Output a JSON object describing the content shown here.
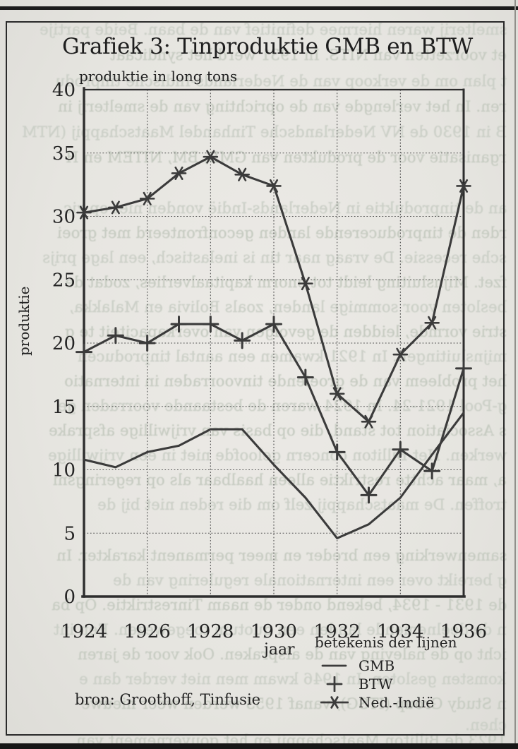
{
  "page": {
    "title": "Grafiek 3: Tinproduktie GMB en BTW",
    "subtitle": "produktie in long tons",
    "y_axis_title": "produktie",
    "x_axis_title": "jaar",
    "legend_title": "betekenis der lijnen",
    "source": "bron: Groothoff, Tinfusie"
  },
  "chart_data": {
    "type": "line",
    "title": "Grafiek 3: Tinproduktie GMB en BTW",
    "subtitle": "produktie in long tons",
    "xlabel": "jaar",
    "ylabel": "produktie",
    "x": [
      1924,
      1925,
      1926,
      1927,
      1928,
      1929,
      1930,
      1931,
      1932,
      1933,
      1934,
      1935,
      1936
    ],
    "series": [
      {
        "name": "GMB",
        "marker": "none",
        "values": [
          10.8,
          10.2,
          11.4,
          11.9,
          13.2,
          13.2,
          10.4,
          7.8,
          4.6,
          5.7,
          7.8,
          11.2,
          14.5
        ]
      },
      {
        "name": "BTW",
        "marker": "plus",
        "values": [
          19.3,
          20.6,
          20.0,
          21.5,
          21.5,
          20.2,
          21.5,
          17.3,
          11.4,
          8.0,
          11.6,
          9.9,
          18.0
        ]
      },
      {
        "name": "Ned.-Indië",
        "marker": "star",
        "values": [
          30.3,
          30.7,
          31.4,
          33.4,
          34.7,
          33.3,
          32.4,
          24.7,
          16.0,
          13.8,
          19.1,
          21.6,
          32.4
        ]
      }
    ],
    "ylim": [
      0,
      40
    ],
    "y_ticks": [
      0,
      5,
      10,
      15,
      20,
      25,
      30,
      35,
      40
    ],
    "x_ticks": [
      1924,
      1926,
      1928,
      1930,
      1932,
      1934,
      1936
    ],
    "grid": true,
    "legend_title": "betekenis der lijnen",
    "legend_position": "below-right",
    "source": "bron: Groothoff, Tinfusie"
  },
  "colors": {
    "ink": "#3b3b3b",
    "axis": "#2d2d2d",
    "grid": "#3f3f3f",
    "label": "#242424",
    "paper": "#e7e6e2",
    "bleed": "#c6cbc1"
  },
  "bleedthrough": {
    "lines": [
      {
        "top": 30,
        "text": "smelterij waren hiermee definitief van de baan. Beide partije"
      },
      {
        "top": 66,
        "text": "et voorzetten van NITS. In 1931 werd het syndicaat"
      },
      {
        "top": 103,
        "text": "t plan om de verkoop van de Nederlands-Indische tinprodu"
      },
      {
        "top": 139,
        "text": "ren. In het verlengde van de oprichting van de smelterij in"
      },
      {
        "top": 175,
        "text": "B in 1930 de NV Nederlandsche Tinhandel Maatschappij (NTM"
      },
      {
        "top": 211,
        "text": "rganisatie voor de produkten van GMB, BM, NITEM en H"
      },
      {
        "top": 283,
        "text": "an de tinproduktie in Nederlands-Indië vonden niet op zic"
      },
      {
        "top": 318,
        "text": "rden de tinproducerende landen geconfronteerd met groei"
      },
      {
        "top": 353,
        "text": "sche recessie. De vraag naar tin is inelastisch, een lage prijs"
      },
      {
        "top": 388,
        "text": "fzet. Mijnsluiting leidt tot enorm kapitaalverlies, zodat de"
      },
      {
        "top": 423,
        "text": "besloten voor sommige landen, zoals Bolivia en Malakka,"
      },
      {
        "top": 458,
        "text": "strie vormde, leidden de gevolgen van overkapaciteit te g"
      },
      {
        "top": 493,
        "text": "mijnsluitingen. In 1921 kwamen een aantal tinproducen"
      },
      {
        "top": 528,
        "text": "het probleem van de groeiende tinvoorraden in internatio"
      },
      {
        "top": 563,
        "text": "g-Pool 1921-24. In 1924 waren de bestaande voorraden ge"
      },
      {
        "top": 598,
        "text": "s Association tot stand, die op basis van vrijwillige afsprake"
      },
      {
        "top": 633,
        "text": "werken. Het Billiton concern geloofde niet in een vrijwillige"
      },
      {
        "top": 668,
        "text": "a, maar achtte restriktie alleen haalbaar als op regeringsni"
      },
      {
        "top": 703,
        "text": "troffen. De maatschappij zelf om die reden niet bij de"
      },
      {
        "top": 775,
        "text": "samenwerking een breder en meer permanent karakter. In"
      },
      {
        "top": 810,
        "text": "g bereikt over een internationale regulering van de"
      },
      {
        "top": 845,
        "text": "de 1931 - 1934, bekend onder de naam Tinrestriktie. Op ba"
      },
      {
        "top": 880,
        "text": "n de deelnemende landen een quotum toegewezen. Een int"
      },
      {
        "top": 915,
        "text": "icht op de naleving van de afspraken. Ook voor de jaren"
      },
      {
        "top": 950,
        "text": "komsten gesloten. In 1946 kwam men niet verder dan e"
      },
      {
        "top": 985,
        "text": "n Study Group (ITSG), vanaf 1953 werden weer nieuwe"
      },
      {
        "top": 1015,
        "text": "chen."
      },
      {
        "top": 1037,
        "text": "1923 de Billiton Maatschappij en het gouvernement van"
      }
    ]
  }
}
